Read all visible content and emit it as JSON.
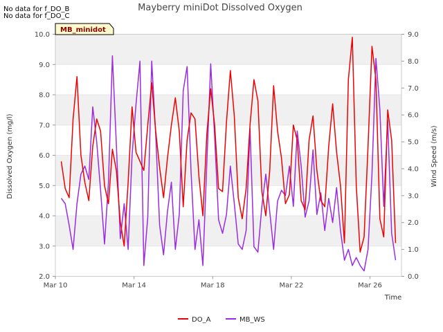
{
  "notes": [
    "No data for f_DO_B",
    "No data for f_DO_C"
  ],
  "badge": "MB_minidot",
  "colors": {
    "DO_A": "#ee0000",
    "MB_WS": "#9a2be2",
    "band": "#f0f0f0",
    "badge_bg": "#fffacd"
  },
  "chart_data": {
    "type": "line",
    "title": "Mayberry miniDot Dissolved Oxygen",
    "xlabel": "Time",
    "ylabel": "Dissolved Oxygen (mg/l)",
    "y2label": "Wind Speed (m/s)",
    "x_range_days": [
      10.0,
      27.6
    ],
    "xticks": [
      {
        "day": 10,
        "label": "Mar 10"
      },
      {
        "day": 14,
        "label": "Mar 14"
      },
      {
        "day": 18,
        "label": "Mar 18"
      },
      {
        "day": 22,
        "label": "Mar 22"
      },
      {
        "day": 26,
        "label": "Mar 26"
      }
    ],
    "ylim": [
      2.0,
      10.0
    ],
    "yticks": [
      "2.0",
      "3.0",
      "4.0",
      "5.0",
      "6.0",
      "7.0",
      "8.0",
      "9.0",
      "10.0"
    ],
    "y2lim": [
      0.0,
      9.0
    ],
    "y2ticks": [
      "0.0",
      "1.0",
      "2.0",
      "3.0",
      "4.0",
      "5.0",
      "6.0",
      "7.0",
      "8.0",
      "9.0"
    ],
    "legend": {
      "placement": "bottom-center"
    },
    "series": [
      {
        "name": "DO_A",
        "axis": "left",
        "x": [
          10.3,
          10.5,
          10.7,
          10.9,
          11.1,
          11.3,
          11.5,
          11.7,
          11.9,
          12.1,
          12.3,
          12.5,
          12.7,
          12.9,
          13.1,
          13.3,
          13.5,
          13.7,
          13.9,
          14.1,
          14.3,
          14.5,
          14.7,
          14.9,
          15.1,
          15.3,
          15.5,
          15.7,
          15.9,
          16.1,
          16.3,
          16.5,
          16.7,
          16.9,
          17.1,
          17.3,
          17.5,
          17.7,
          17.9,
          18.1,
          18.3,
          18.5,
          18.7,
          18.9,
          19.1,
          19.3,
          19.5,
          19.7,
          19.9,
          20.1,
          20.3,
          20.5,
          20.7,
          20.9,
          21.1,
          21.3,
          21.5,
          21.7,
          21.9,
          22.1,
          22.3,
          22.5,
          22.7,
          22.9,
          23.1,
          23.3,
          23.5,
          23.7,
          23.9,
          24.1,
          24.3,
          24.5,
          24.7,
          24.9,
          25.1,
          25.3,
          25.5,
          25.7,
          25.9,
          26.1,
          26.3,
          26.5,
          26.7,
          26.9,
          27.1,
          27.3
        ],
        "values": [
          5.8,
          4.9,
          4.6,
          7.2,
          8.6,
          6.0,
          5.1,
          4.5,
          6.3,
          7.2,
          6.8,
          5.0,
          4.4,
          6.2,
          5.5,
          3.8,
          3.0,
          5.1,
          7.6,
          6.1,
          5.8,
          5.5,
          7.0,
          8.4,
          6.8,
          5.6,
          4.6,
          5.9,
          7.0,
          7.9,
          6.8,
          4.3,
          6.5,
          7.4,
          7.2,
          5.3,
          4.0,
          6.7,
          8.2,
          7.0,
          4.9,
          4.8,
          7.1,
          8.8,
          7.3,
          4.6,
          3.9,
          4.9,
          7.0,
          8.5,
          7.8,
          4.8,
          4.0,
          5.5,
          8.3,
          6.8,
          5.9,
          4.4,
          4.7,
          7.0,
          6.5,
          4.5,
          4.2,
          6.5,
          7.3,
          5.5,
          4.5,
          4.3,
          6.3,
          7.7,
          6.1,
          5.0,
          3.1,
          8.5,
          9.9,
          5.0,
          2.8,
          3.3,
          6.3,
          9.6,
          8.5,
          3.9,
          3.3,
          7.5,
          6.5,
          3.1
        ]
      },
      {
        "name": "MB_WS",
        "axis": "right",
        "x": [
          10.3,
          10.5,
          10.7,
          10.9,
          11.1,
          11.3,
          11.5,
          11.7,
          11.9,
          12.1,
          12.3,
          12.5,
          12.7,
          12.9,
          13.1,
          13.3,
          13.5,
          13.7,
          13.9,
          14.1,
          14.3,
          14.5,
          14.7,
          14.9,
          15.1,
          15.3,
          15.5,
          15.7,
          15.9,
          16.1,
          16.3,
          16.5,
          16.7,
          16.9,
          17.1,
          17.3,
          17.5,
          17.7,
          17.9,
          18.1,
          18.3,
          18.5,
          18.7,
          18.9,
          19.1,
          19.3,
          19.5,
          19.7,
          19.9,
          20.1,
          20.3,
          20.5,
          20.7,
          20.9,
          21.1,
          21.3,
          21.5,
          21.7,
          21.9,
          22.1,
          22.3,
          22.5,
          22.7,
          22.9,
          23.1,
          23.3,
          23.5,
          23.7,
          23.9,
          24.1,
          24.3,
          24.5,
          24.7,
          24.9,
          25.1,
          25.3,
          25.5,
          25.7,
          25.9,
          26.1,
          26.3,
          26.5,
          26.7,
          26.9,
          27.1,
          27.3
        ],
        "values": [
          2.9,
          2.7,
          1.9,
          1.0,
          2.7,
          3.8,
          4.1,
          3.6,
          6.3,
          5.0,
          3.2,
          1.2,
          3.5,
          8.2,
          4.9,
          1.4,
          2.7,
          1.0,
          4.5,
          6.4,
          8.0,
          0.4,
          2.2,
          8.0,
          5.3,
          1.9,
          0.8,
          2.4,
          3.5,
          1.0,
          2.3,
          6.9,
          7.8,
          3.9,
          1.0,
          2.1,
          0.4,
          4.2,
          7.9,
          5.2,
          2.1,
          1.6,
          2.3,
          4.1,
          2.7,
          1.2,
          1.0,
          1.7,
          5.5,
          1.1,
          0.9,
          2.6,
          3.8,
          2.4,
          1.0,
          2.8,
          3.2,
          3.0,
          4.1,
          2.6,
          5.4,
          4.1,
          2.2,
          2.8,
          4.7,
          2.3,
          3.1,
          1.7,
          2.9,
          2.0,
          3.3,
          1.7,
          0.6,
          1.0,
          0.4,
          0.7,
          0.4,
          0.2,
          1.0,
          3.8,
          8.1,
          6.2,
          2.6,
          5.8,
          1.6,
          0.6
        ]
      }
    ]
  }
}
